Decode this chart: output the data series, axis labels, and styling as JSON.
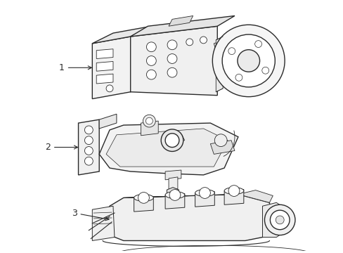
{
  "background_color": "#ffffff",
  "line_color": "#2a2a2a",
  "label_color": "#222222",
  "labels": [
    "1",
    "2",
    "3"
  ],
  "line_width": 1.0,
  "figsize": [
    4.89,
    3.6
  ],
  "dpi": 100,
  "face_color": "#f8f8f8",
  "face_color2": "#efefef"
}
